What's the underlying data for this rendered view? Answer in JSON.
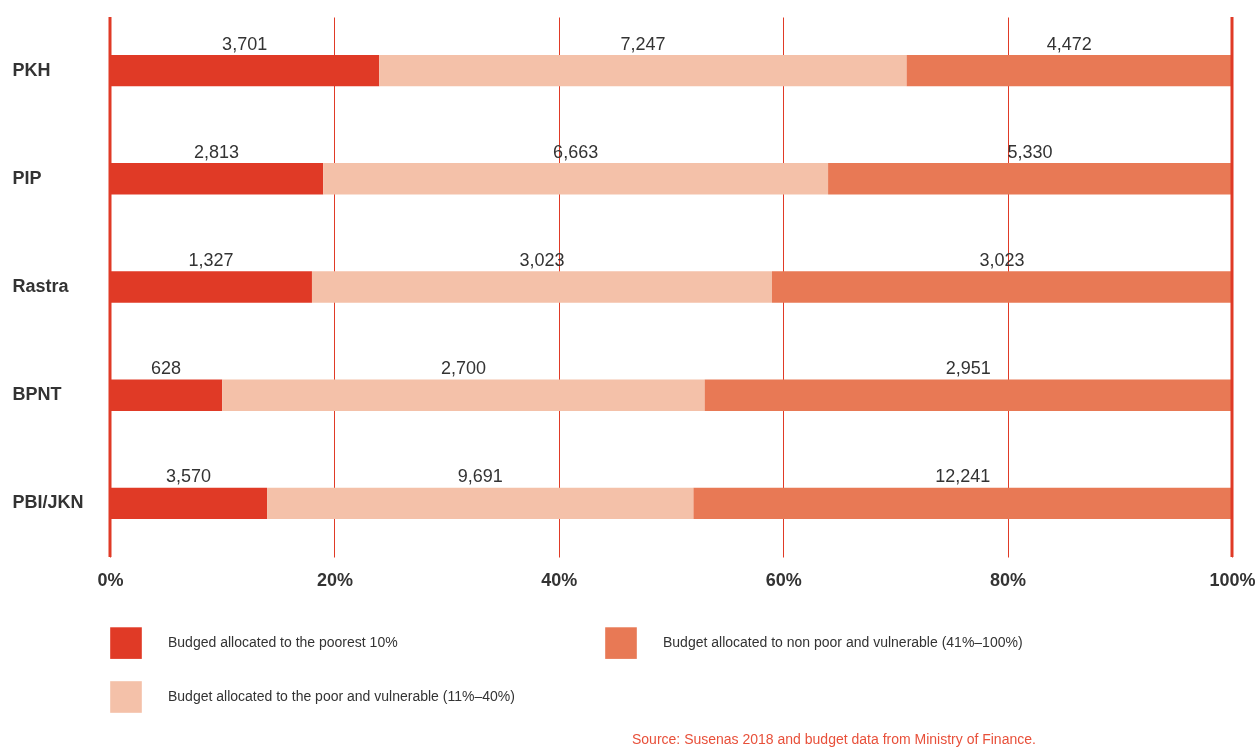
{
  "chart_data": {
    "type": "bar",
    "orientation": "horizontal",
    "stacked": true,
    "categories": [
      "PKH",
      "PIP",
      "Rastra",
      "BPNT",
      "PBI/JKN"
    ],
    "series": [
      {
        "name": "Budged allocated to the poorest 10%",
        "color": "#e03a26",
        "values": [
          24,
          19,
          18,
          10,
          14
        ]
      },
      {
        "name": "Budget allocated to the poor and vulnerable (11%–40%)",
        "color": "#f4c1a9",
        "values": [
          47,
          45,
          41,
          43,
          38
        ]
      },
      {
        "name": "Budget allocated to non poor and vulnerable (41%–100%)",
        "color": "#e87955",
        "values": [
          29,
          36,
          41,
          47,
          48
        ]
      }
    ],
    "xlim": [
      0,
      100
    ],
    "xticks": [
      {
        "value": 0,
        "label": "0%"
      },
      {
        "value": 20,
        "label": "20%"
      },
      {
        "value": 40,
        "label": "40%"
      },
      {
        "value": 60,
        "label": "60%"
      },
      {
        "value": 80,
        "label": "80%"
      },
      {
        "value": 100,
        "label": "100%"
      }
    ],
    "grid": "x",
    "legend": "bottom",
    "annotations": [
      "3,701",
      "7,247",
      "4,472",
      "2,813",
      "6,663",
      "5,330",
      "1,327",
      "3,023",
      "3,023",
      "628",
      "2,700",
      "2,951",
      "3,570",
      "9,691",
      "12,241",
      "Source: Susenas 2018 and budget data from Ministry of Finance."
    ]
  }
}
